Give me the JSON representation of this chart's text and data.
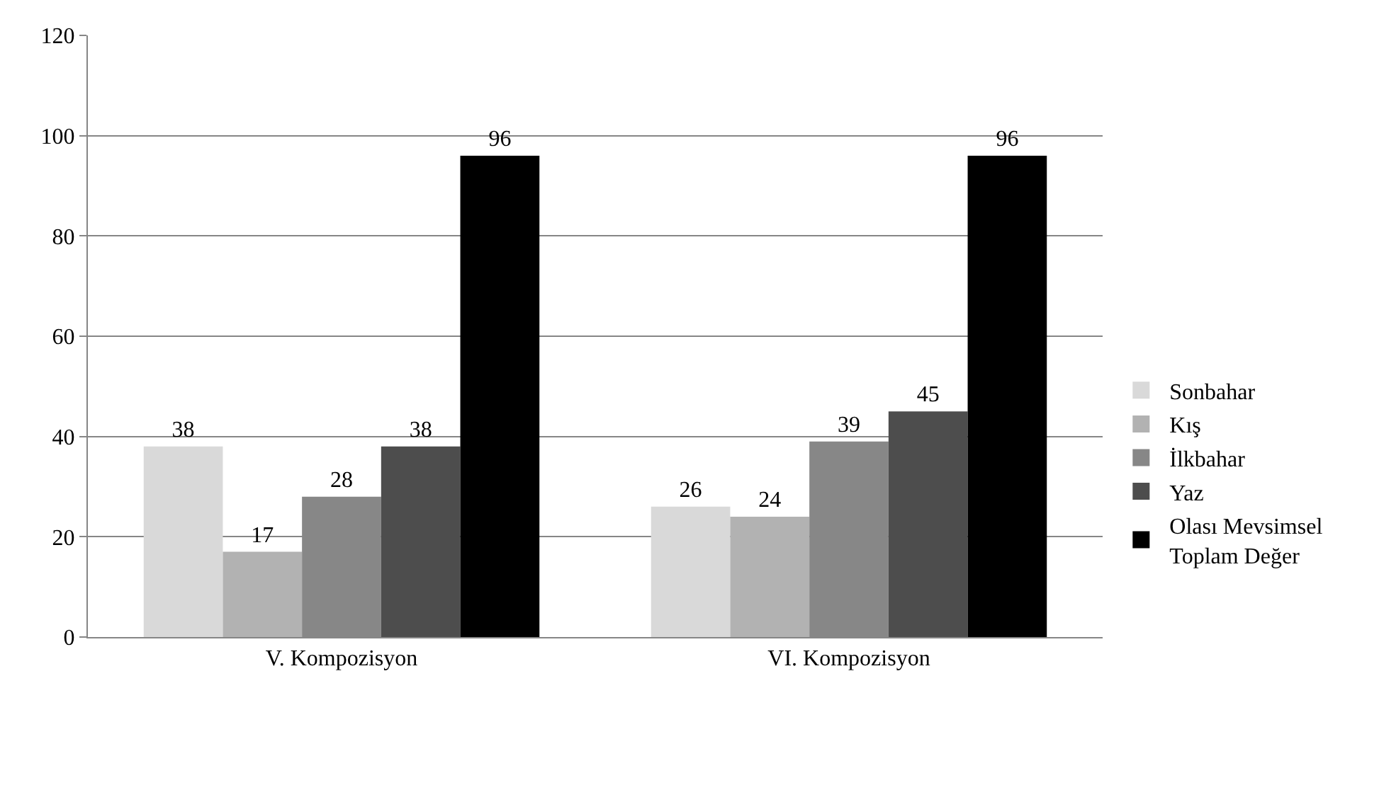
{
  "chart_data": {
    "type": "bar",
    "categories": [
      "V. Kompozisyon",
      "VI. Kompozisyon"
    ],
    "series": [
      {
        "name": "Sonbahar",
        "color": "#d9d9d9",
        "values": [
          38,
          26
        ]
      },
      {
        "name": "Kış",
        "color": "#b2b2b2",
        "values": [
          17,
          24
        ]
      },
      {
        "name": "İlkbahar",
        "color": "#878787",
        "values": [
          28,
          39
        ]
      },
      {
        "name": "Yaz",
        "color": "#4d4d4d",
        "values": [
          38,
          45
        ]
      },
      {
        "name": "Olası Mevsimsel Toplam Değer",
        "color": "#000000",
        "values": [
          96,
          96
        ]
      }
    ],
    "ylim": [
      0,
      120
    ],
    "yticks": [
      0,
      20,
      40,
      60,
      80,
      100,
      120
    ],
    "grid": "y",
    "legend": "right",
    "data_labels": true
  }
}
